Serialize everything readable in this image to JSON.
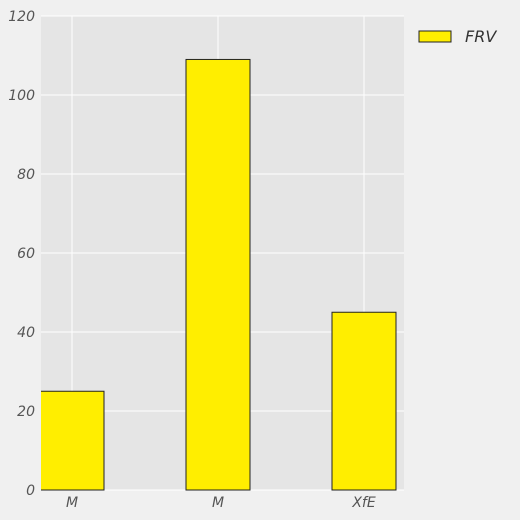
{
  "chart_data": {
    "type": "bar",
    "categories": [
      "M",
      "M",
      "XfE"
    ],
    "series": [
      {
        "name": "FRV",
        "values": [
          25,
          109,
          45
        ]
      }
    ],
    "ylim": [
      0,
      120
    ],
    "yticks": [
      0,
      20,
      40,
      60,
      80,
      100,
      120
    ],
    "grid": true,
    "legend_placement": "top-right-outside",
    "colors": {
      "bar_fill": "#ffee00",
      "bar_edge": "#222222",
      "plot_background": "#e5e5e5",
      "figure_background": "#f0f0f0",
      "grid": "#ffffff"
    }
  }
}
